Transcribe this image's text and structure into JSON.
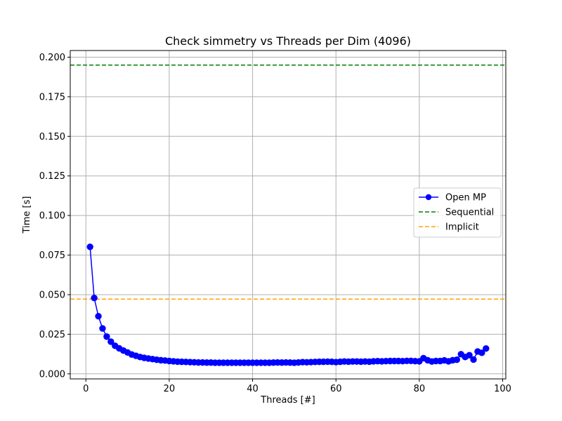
{
  "chart_data": {
    "type": "line",
    "title": "Check simmetry vs Threads per Dim (4096)",
    "xlabel": "Threads [#]",
    "ylabel": "Time [s]",
    "xlim": [
      -3.75,
      100.75
    ],
    "ylim": [
      -0.0032,
      0.2042
    ],
    "xticks": [
      0,
      20,
      40,
      60,
      80,
      100
    ],
    "yticks": [
      0.0,
      0.025,
      0.05,
      0.075,
      0.1,
      0.125,
      0.15,
      0.175,
      0.2
    ],
    "xtick_labels": [
      "0",
      "20",
      "40",
      "60",
      "80",
      "100"
    ],
    "ytick_labels": [
      "0.000",
      "0.025",
      "0.050",
      "0.075",
      "0.100",
      "0.125",
      "0.150",
      "0.175",
      "0.200"
    ],
    "grid": true,
    "legend_position": "center-right",
    "series": [
      {
        "name": "Open MP",
        "color": "#0000ff",
        "style": "line-marker",
        "x": [
          1,
          2,
          3,
          4,
          5,
          6,
          7,
          8,
          9,
          10,
          11,
          12,
          13,
          14,
          15,
          16,
          17,
          18,
          19,
          20,
          21,
          22,
          23,
          24,
          25,
          26,
          27,
          28,
          29,
          30,
          31,
          32,
          33,
          34,
          35,
          36,
          37,
          38,
          39,
          40,
          41,
          42,
          43,
          44,
          45,
          46,
          47,
          48,
          49,
          50,
          51,
          52,
          53,
          54,
          55,
          56,
          57,
          58,
          59,
          60,
          61,
          62,
          63,
          64,
          65,
          66,
          67,
          68,
          69,
          70,
          71,
          72,
          73,
          74,
          75,
          76,
          77,
          78,
          79,
          80,
          81,
          82,
          83,
          84,
          85,
          86,
          87,
          88,
          89,
          90,
          91,
          92,
          93,
          94,
          95,
          96
        ],
        "y": [
          0.0802,
          0.0479,
          0.0364,
          0.0287,
          0.0235,
          0.0203,
          0.0177,
          0.0161,
          0.0147,
          0.0135,
          0.0122,
          0.0114,
          0.0106,
          0.0101,
          0.0097,
          0.0093,
          0.0089,
          0.0086,
          0.0084,
          0.0081,
          0.0079,
          0.0077,
          0.0076,
          0.0075,
          0.0074,
          0.0073,
          0.0072,
          0.0072,
          0.0071,
          0.0071,
          0.007,
          0.007,
          0.007,
          0.007,
          0.007,
          0.007,
          0.007,
          0.007,
          0.007,
          0.007,
          0.007,
          0.007,
          0.007,
          0.007,
          0.0071,
          0.0072,
          0.0071,
          0.0072,
          0.0071,
          0.007,
          0.0072,
          0.0074,
          0.0073,
          0.0074,
          0.0075,
          0.0076,
          0.0076,
          0.0077,
          0.0076,
          0.0074,
          0.0076,
          0.0078,
          0.0077,
          0.0078,
          0.0078,
          0.0077,
          0.0078,
          0.0077,
          0.0079,
          0.008,
          0.0079,
          0.008,
          0.0081,
          0.0081,
          0.0081,
          0.008,
          0.0082,
          0.0082,
          0.008,
          0.0079,
          0.0099,
          0.0086,
          0.0078,
          0.0081,
          0.0081,
          0.0085,
          0.0079,
          0.0086,
          0.0089,
          0.0124,
          0.0106,
          0.0118,
          0.009,
          0.0141,
          0.0133,
          0.016
        ]
      },
      {
        "name": "Sequential",
        "color": "#008000",
        "style": "dashed-hline",
        "value": 0.195
      },
      {
        "name": "Implicit",
        "color": "#ffa500",
        "style": "dashed-hline",
        "value": 0.0472
      }
    ]
  }
}
